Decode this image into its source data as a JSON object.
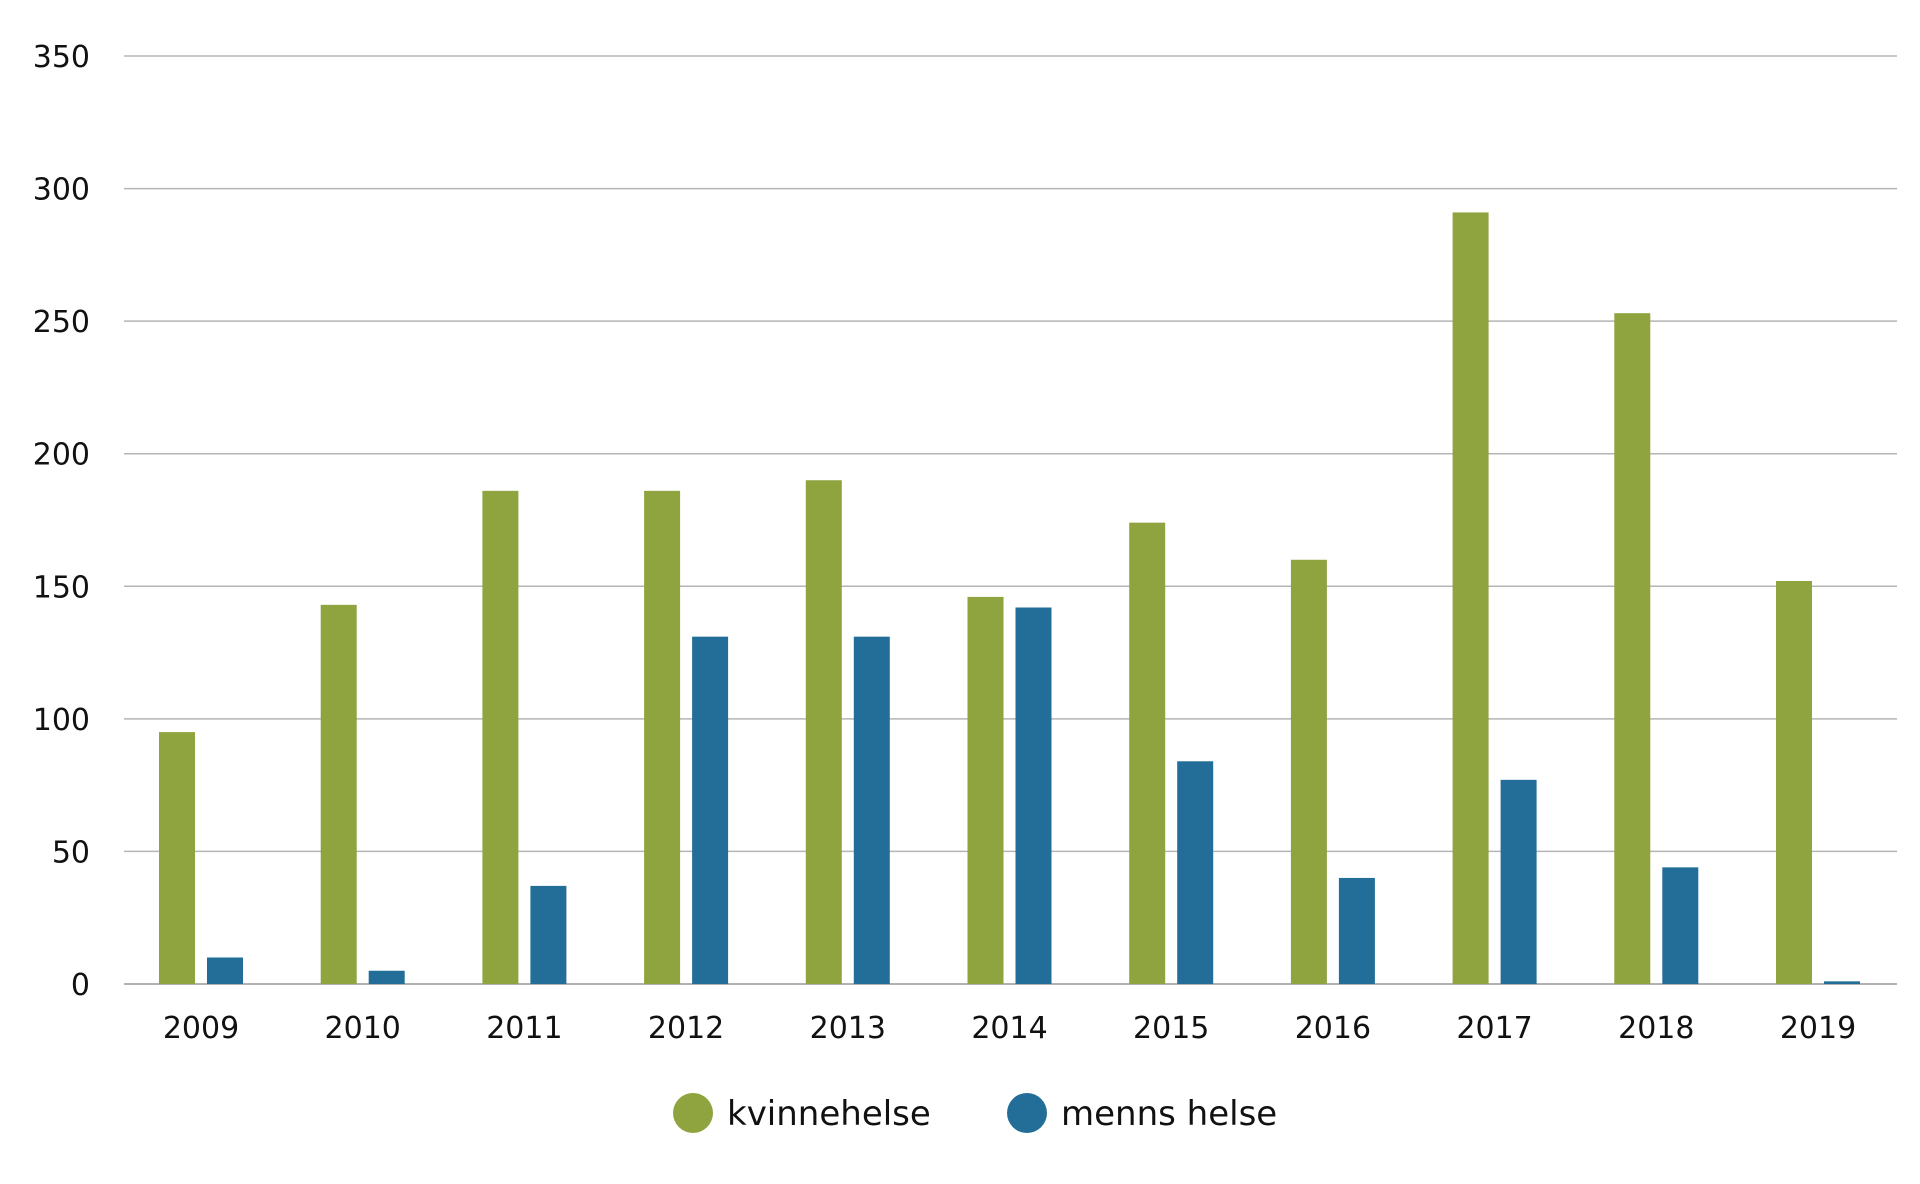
{
  "chart_data": {
    "type": "bar",
    "title": "",
    "xlabel": "",
    "ylabel": "",
    "ylim": [
      0,
      350
    ],
    "yticks": [
      0,
      50,
      100,
      150,
      200,
      250,
      300,
      350
    ],
    "ytick_labels": [
      "0",
      "50",
      "100",
      "150",
      "200",
      "250",
      "300",
      "350"
    ],
    "grid": true,
    "legend_position": "bottom-center",
    "categories": [
      "2009",
      "2010",
      "2011",
      "2012",
      "2013",
      "2014",
      "2015",
      "2016",
      "2017",
      "2018",
      "2019"
    ],
    "series": [
      {
        "name": "kvinnehelse",
        "color": "#8fa33f",
        "values": [
          95,
          143,
          186,
          186,
          190,
          146,
          174,
          160,
          291,
          253,
          152
        ]
      },
      {
        "name": "menns helse",
        "color": "#236e98",
        "values": [
          10,
          5,
          37,
          131,
          131,
          142,
          84,
          40,
          77,
          44,
          1
        ]
      }
    ]
  }
}
